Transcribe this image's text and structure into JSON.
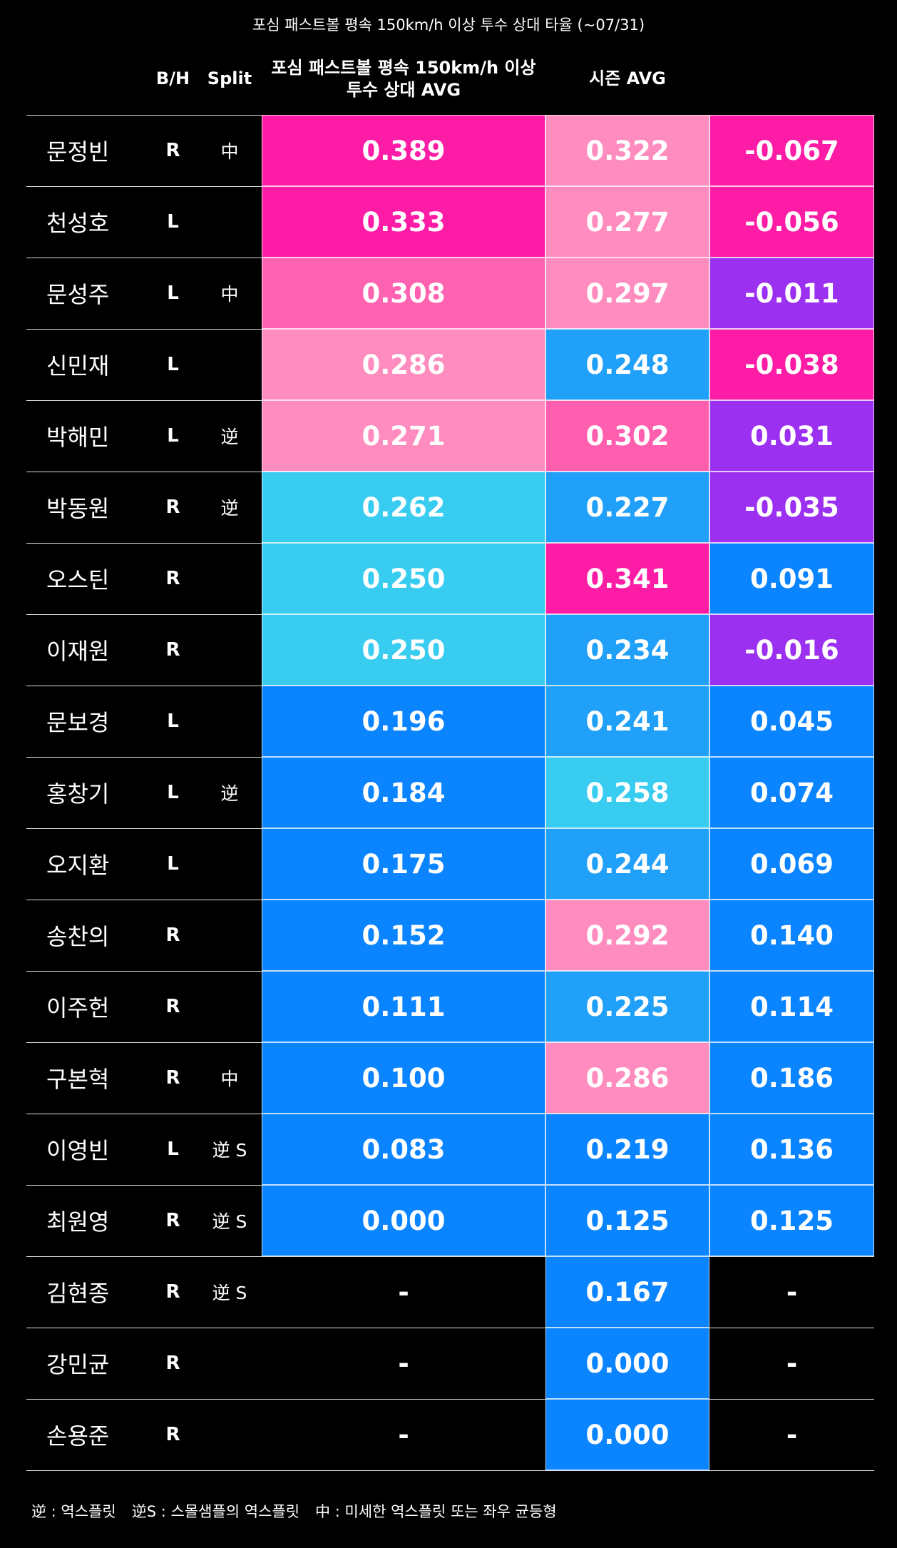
{
  "title": "포심 패스트볼 평속 150km/h 이상 투수 상대 타율 (~07/31)",
  "header": {
    "bh": "B/H",
    "split": "Split",
    "avg150": "포심 패스트볼 평속 150km/h 이상\n투수 상대 AVG",
    "season": "시즌 AVG"
  },
  "rows": [
    {
      "name": "문정빈",
      "bh": "R",
      "split": "中",
      "avg150": "0.389",
      "season": "0.322",
      "diff": "-0.067",
      "colors": [
        "#fd1ca5",
        "#ff8cbf",
        "#fd1ca5"
      ]
    },
    {
      "name": "천성호",
      "bh": "L",
      "split": null,
      "avg150": "0.333",
      "season": "0.277",
      "diff": "-0.056",
      "colors": [
        "#fd1ca5",
        "#ff8cbf",
        "#fd1ca5"
      ]
    },
    {
      "name": "문성주",
      "bh": "L",
      "split": "中",
      "avg150": "0.308",
      "season": "0.297",
      "diff": "-0.011",
      "colors": [
        "#ff62b0",
        "#ff8cbf",
        "#9b30f0"
      ]
    },
    {
      "name": "신민재",
      "bh": "L",
      "split": null,
      "avg150": "0.286",
      "season": "0.248",
      "diff": "-0.038",
      "colors": [
        "#ff8cbf",
        "#20a0f8",
        "#fd1ca5"
      ]
    },
    {
      "name": "박해민",
      "bh": "L",
      "split": "逆",
      "avg150": "0.271",
      "season": "0.302",
      "diff": "0.031",
      "colors": [
        "#ff8cbf",
        "#ff5fae",
        "#9b30f0"
      ]
    },
    {
      "name": "박동원",
      "bh": "R",
      "split": "逆",
      "avg150": "0.262",
      "season": "0.227",
      "diff": "-0.035",
      "colors": [
        "#38ccf0",
        "#20a0f8",
        "#9b30f0"
      ]
    },
    {
      "name": "오스틴",
      "bh": "R",
      "split": null,
      "avg150": "0.250",
      "season": "0.341",
      "diff": "0.091",
      "colors": [
        "#38ccf0",
        "#fd1ca5",
        "#0a84ff"
      ]
    },
    {
      "name": "이재원",
      "bh": "R",
      "split": null,
      "avg150": "0.250",
      "season": "0.234",
      "diff": "-0.016",
      "colors": [
        "#38ccf0",
        "#20a0f8",
        "#9b30f0"
      ]
    },
    {
      "name": "문보경",
      "bh": "L",
      "split": null,
      "avg150": "0.196",
      "season": "0.241",
      "diff": "0.045",
      "colors": [
        "#0a84ff",
        "#20a0f8",
        "#0a84ff"
      ]
    },
    {
      "name": "홍창기",
      "bh": "L",
      "split": "逆",
      "avg150": "0.184",
      "season": "0.258",
      "diff": "0.074",
      "colors": [
        "#0a84ff",
        "#38ccf0",
        "#0a84ff"
      ]
    },
    {
      "name": "오지환",
      "bh": "L",
      "split": null,
      "avg150": "0.175",
      "season": "0.244",
      "diff": "0.069",
      "colors": [
        "#0a84ff",
        "#20a0f8",
        "#0a84ff"
      ]
    },
    {
      "name": "송찬의",
      "bh": "R",
      "split": null,
      "avg150": "0.152",
      "season": "0.292",
      "diff": "0.140",
      "colors": [
        "#0a84ff",
        "#ff8cbf",
        "#0a84ff"
      ]
    },
    {
      "name": "이주헌",
      "bh": "R",
      "split": null,
      "avg150": "0.111",
      "season": "0.225",
      "diff": "0.114",
      "colors": [
        "#0a84ff",
        "#20a0f8",
        "#0a84ff"
      ]
    },
    {
      "name": "구본혁",
      "bh": "R",
      "split": "中",
      "avg150": "0.100",
      "season": "0.286",
      "diff": "0.186",
      "colors": [
        "#0a84ff",
        "#ff8cbf",
        "#0a84ff"
      ]
    },
    {
      "name": "이영빈",
      "bh": "L",
      "split": "逆 S",
      "avg150": "0.083",
      "season": "0.219",
      "diff": "0.136",
      "colors": [
        "#0a84ff",
        "#0a84ff",
        "#0a84ff"
      ]
    },
    {
      "name": "최원영",
      "bh": "R",
      "split": "逆 S",
      "avg150": "0.000",
      "season": "0.125",
      "diff": "0.125",
      "colors": [
        "#0a84ff",
        "#0a84ff",
        "#0a84ff"
      ]
    },
    {
      "name": "김현종",
      "bh": "R",
      "split": "逆 S",
      "avg150": "-",
      "season": "0.167",
      "diff": "-",
      "colors": [
        null,
        "#0a84ff",
        null
      ]
    },
    {
      "name": "강민균",
      "bh": "R",
      "split": null,
      "avg150": "-",
      "season": "0.000",
      "diff": "-",
      "colors": [
        null,
        "#0a84ff",
        null
      ]
    },
    {
      "name": "손용준",
      "bh": "R",
      "split": null,
      "avg150": "-",
      "season": "0.000",
      "diff": "-",
      "colors": [
        null,
        "#0a84ff",
        null
      ]
    }
  ],
  "legend": [
    "逆 :  역스플릿",
    "逆S :  스몰샘플의 역스플릿",
    "中 :  미세한 역스플릿 또는 좌우 균등형"
  ]
}
